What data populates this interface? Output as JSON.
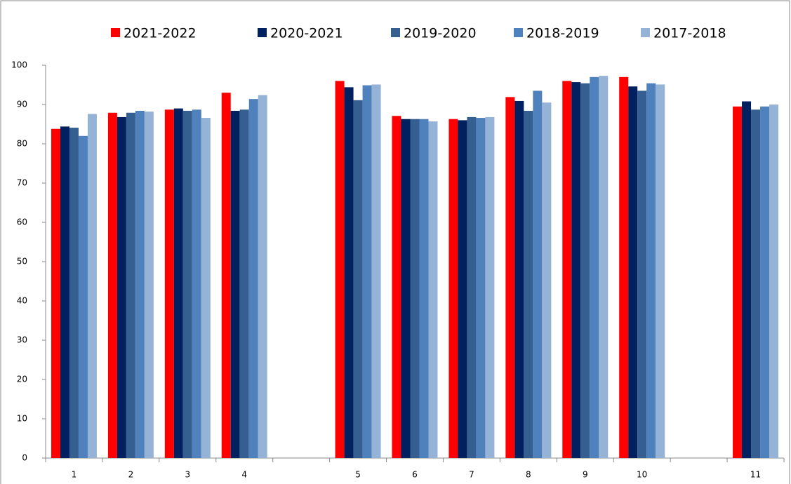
{
  "chart_data": {
    "type": "bar",
    "categories": [
      "1",
      "2",
      "3",
      "4",
      null,
      "5",
      "6",
      "7",
      "8",
      "9",
      "10",
      null,
      "11"
    ],
    "series": [
      {
        "name": "2021-2022",
        "color": "#ff0000",
        "values": [
          83.8,
          87.9,
          88.7,
          93.0,
          null,
          96.0,
          87.1,
          86.3,
          91.9,
          96.0,
          97.0,
          null,
          89.5
        ]
      },
      {
        "name": "2020-2021",
        "color": "#002060",
        "values": [
          84.4,
          86.8,
          89.0,
          88.4,
          null,
          94.4,
          86.3,
          86.0,
          90.9,
          95.7,
          94.6,
          null,
          90.8
        ]
      },
      {
        "name": "2019-2020",
        "color": "#365f91",
        "values": [
          84.1,
          87.9,
          88.4,
          88.7,
          null,
          91.1,
          86.3,
          86.8,
          88.4,
          95.4,
          93.5,
          null,
          88.7
        ]
      },
      {
        "name": "2018-2019",
        "color": "#4f81bd",
        "values": [
          82.0,
          88.4,
          88.7,
          91.4,
          null,
          94.9,
          86.3,
          86.6,
          93.5,
          97.0,
          95.4,
          null,
          89.5
        ]
      },
      {
        "name": "2017-2018",
        "color": "#95b3d7",
        "values": [
          87.6,
          88.2,
          86.6,
          92.4,
          null,
          95.1,
          85.7,
          86.8,
          90.5,
          97.3,
          95.1,
          null,
          90.0
        ]
      }
    ],
    "ylim": [
      0,
      100
    ],
    "yticks": [
      0,
      10,
      20,
      30,
      40,
      50,
      60,
      70,
      80,
      90,
      100
    ],
    "grid": false,
    "legend": "top"
  }
}
